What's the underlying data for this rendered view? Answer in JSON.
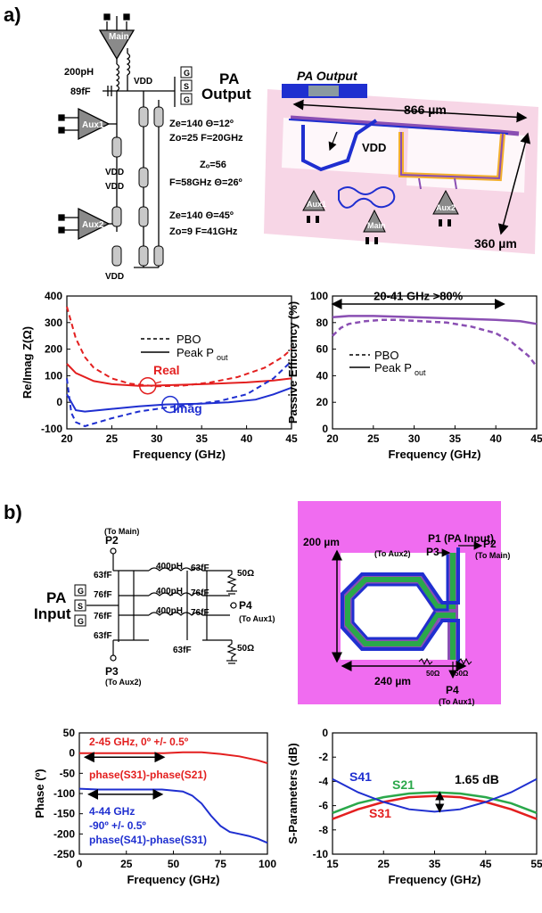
{
  "colors": {
    "red": "#e31f1f",
    "blue": "#1f2fd0",
    "purple": "#8a4fb3",
    "green": "#2aa84a",
    "pink": "#f7d6e6",
    "magenta": "#f06cf0",
    "gold": "#f3b02d",
    "gray": "#888888"
  },
  "part_a": {
    "label": "a)",
    "schematic": {
      "main": "Main",
      "aux1": "Aux1",
      "aux2": "Aux2",
      "cap1": "200pH",
      "cap2": "89fF",
      "vdd": "VDD",
      "pa_output": [
        "PA",
        "Output"
      ],
      "gsg": [
        "G",
        "S",
        "G"
      ],
      "tl1": [
        "Ze=140 Θ=12º",
        "Zo=25 F=20GHz"
      ],
      "tl2": [
        "Zₒ=56",
        "F=58GHz Θ=26º"
      ],
      "tl3": [
        "Ze=140 Θ=45º",
        "Zo=9 F=41GHz"
      ]
    },
    "layout": {
      "title": "PA Output",
      "vdd": "VDD",
      "width": "866 µm",
      "height": "360 µm",
      "aux1": "Aux1",
      "aux2": "Aux2",
      "main": "Main"
    },
    "impedance_chart": {
      "ylabel": "Re/Imag Z(Ω)",
      "xlabel": "Frequency (GHz)",
      "legend": [
        "PBO",
        "Peak P"
      ],
      "legend_sub": "out",
      "ann_real": "Real",
      "ann_imag": "Imag",
      "yticks": [
        "400",
        "300",
        "200",
        "100",
        "0",
        "-100"
      ],
      "xticks": [
        "20",
        "25",
        "30",
        "35",
        "40",
        "45"
      ]
    },
    "efficiency_chart": {
      "ylabel": "Passive Efficiency (%)",
      "xlabel": "Frequency (GHz)",
      "annotation": "20-41 GHz >80%",
      "legend": [
        "PBO",
        "Peak P"
      ],
      "legend_sub": "out",
      "yticks": [
        "100",
        "80",
        "60",
        "40",
        "20",
        "0"
      ],
      "xticks": [
        "20",
        "25",
        "30",
        "35",
        "40",
        "45"
      ]
    }
  },
  "part_b": {
    "label": "b)",
    "schematic": {
      "p2": "P2",
      "to_main": "(To Main)",
      "p3": "P3",
      "to_aux2": "(To Aux2)",
      "p4": "P4",
      "to_aux1": "(To Aux1)",
      "pa_input": [
        "PA",
        "Input"
      ],
      "gsg": [
        "G",
        "S",
        "G"
      ],
      "ind": "400pH",
      "c63": "63fF",
      "c76": "76fF",
      "r50": "50Ω"
    },
    "layout": {
      "p1": "P1 (PA Input)",
      "p2": "P2",
      "to_main": "(To Main)",
      "p3": "P3",
      "to_aux2": "(To Aux2)",
      "p4": "P4",
      "to_aux1": "(To Aux1)",
      "h": "200 µm",
      "w": "240 µm",
      "r": "50Ω"
    },
    "phase_chart": {
      "ylabel": "Phase (º)",
      "xlabel": "Frequency (GHz)",
      "ann1": "2-45 GHz, 0º +/- 0.5º",
      "ann2": "phase(S31)-phase(S21)",
      "ann3": "4-44 GHz",
      "ann4": "-90º +/- 0.5º",
      "ann5": "phase(S41)-phase(S31)",
      "yticks": [
        "50",
        "0",
        "-50",
        "-100",
        "-150",
        "-200",
        "-250"
      ],
      "xticks": [
        "0",
        "25",
        "50",
        "75",
        "100"
      ]
    },
    "sparam_chart": {
      "ylabel": "S-Parameters (dB)",
      "xlabel": "Frequency (GHz)",
      "s41": "S41",
      "s21": "S21",
      "s31": "S31",
      "delta": "1.65 dB",
      "yticks": [
        "0",
        "-2",
        "-4",
        "-6",
        "-8",
        "-10"
      ],
      "xticks": [
        "15",
        "25",
        "35",
        "45",
        "55"
      ]
    }
  },
  "chart_data": [
    {
      "type": "line",
      "xlabel": "Frequency (GHz)",
      "ylabel": "Re/Imag Z(Ω)",
      "xlim": [
        20,
        45
      ],
      "ylim": [
        -100,
        400
      ],
      "series": [
        {
          "name": "Real Peak Pout",
          "x": [
            20,
            21,
            23,
            25,
            28,
            30,
            35,
            40,
            43,
            45
          ],
          "y": [
            145,
            110,
            80,
            68,
            62,
            63,
            68,
            75,
            82,
            90
          ]
        },
        {
          "name": "Real PBO",
          "x": [
            20,
            21,
            22,
            23,
            25,
            27,
            30,
            33,
            36,
            39,
            42,
            44,
            45
          ],
          "y": [
            360,
            240,
            170,
            130,
            90,
            70,
            60,
            63,
            75,
            95,
            130,
            170,
            200
          ]
        },
        {
          "name": "Imag Peak Pout",
          "x": [
            20,
            21,
            22,
            25,
            28,
            31,
            35,
            38,
            41,
            43,
            45
          ],
          "y": [
            30,
            -30,
            -35,
            -25,
            -15,
            -8,
            -5,
            0,
            10,
            30,
            55
          ]
        },
        {
          "name": "Imag PBO",
          "x": [
            20,
            20.5,
            21,
            22,
            23,
            25,
            28,
            31,
            34,
            37,
            40,
            43,
            45
          ],
          "y": [
            90,
            -40,
            -75,
            -90,
            -80,
            -60,
            -35,
            -20,
            -8,
            5,
            30,
            90,
            155
          ]
        }
      ]
    },
    {
      "type": "line",
      "xlabel": "Frequency (GHz)",
      "ylabel": "Passive Efficiency (%)",
      "xlim": [
        20,
        45
      ],
      "ylim": [
        0,
        100
      ],
      "series": [
        {
          "name": "Peak Pout",
          "x": [
            20,
            22,
            25,
            30,
            35,
            40,
            43,
            45
          ],
          "y": [
            84,
            85,
            85,
            84,
            83,
            82,
            81,
            79
          ]
        },
        {
          "name": "PBO",
          "x": [
            20,
            21,
            22,
            24,
            26,
            28,
            31,
            34,
            37,
            40,
            42,
            44,
            45
          ],
          "y": [
            70,
            76,
            79,
            81,
            82,
            82,
            81,
            80,
            77,
            72,
            65,
            55,
            47
          ]
        }
      ]
    },
    {
      "type": "line",
      "xlabel": "Frequency (GHz)",
      "ylabel": "Phase (º)",
      "xlim": [
        0,
        100
      ],
      "ylim": [
        -250,
        50
      ],
      "series": [
        {
          "name": "phase(S31)-phase(S21)",
          "x": [
            0,
            25,
            45,
            55,
            65,
            75,
            85,
            95,
            100
          ],
          "y": [
            0,
            0,
            0,
            2,
            2,
            -2,
            -8,
            -18,
            -25
          ]
        },
        {
          "name": "phase(S41)-phase(S31)",
          "x": [
            0,
            10,
            25,
            44,
            55,
            60,
            65,
            70,
            75,
            80,
            85,
            90,
            95,
            100
          ],
          "y": [
            -88,
            -90,
            -90,
            -90,
            -95,
            -105,
            -125,
            -155,
            -180,
            -195,
            -200,
            -205,
            -212,
            -222
          ]
        }
      ]
    },
    {
      "type": "line",
      "xlabel": "Frequency (GHz)",
      "ylabel": "S-Parameters (dB)",
      "xlim": [
        15,
        55
      ],
      "ylim": [
        -10,
        0
      ],
      "series": [
        {
          "name": "S41",
          "x": [
            15,
            20,
            25,
            30,
            35,
            40,
            45,
            50,
            55
          ],
          "y": [
            -3.8,
            -4.9,
            -5.7,
            -6.3,
            -6.5,
            -6.3,
            -5.7,
            -4.9,
            -3.8
          ]
        },
        {
          "name": "S21",
          "x": [
            15,
            20,
            25,
            30,
            35,
            40,
            45,
            50,
            55
          ],
          "y": [
            -6.6,
            -5.8,
            -5.3,
            -5.0,
            -4.9,
            -5.0,
            -5.3,
            -5.8,
            -6.6
          ]
        },
        {
          "name": "S31",
          "x": [
            15,
            20,
            25,
            30,
            35,
            40,
            45,
            50,
            55
          ],
          "y": [
            -7.1,
            -6.3,
            -5.7,
            -5.3,
            -5.2,
            -5.3,
            -5.7,
            -6.3,
            -7.1
          ]
        }
      ]
    }
  ]
}
